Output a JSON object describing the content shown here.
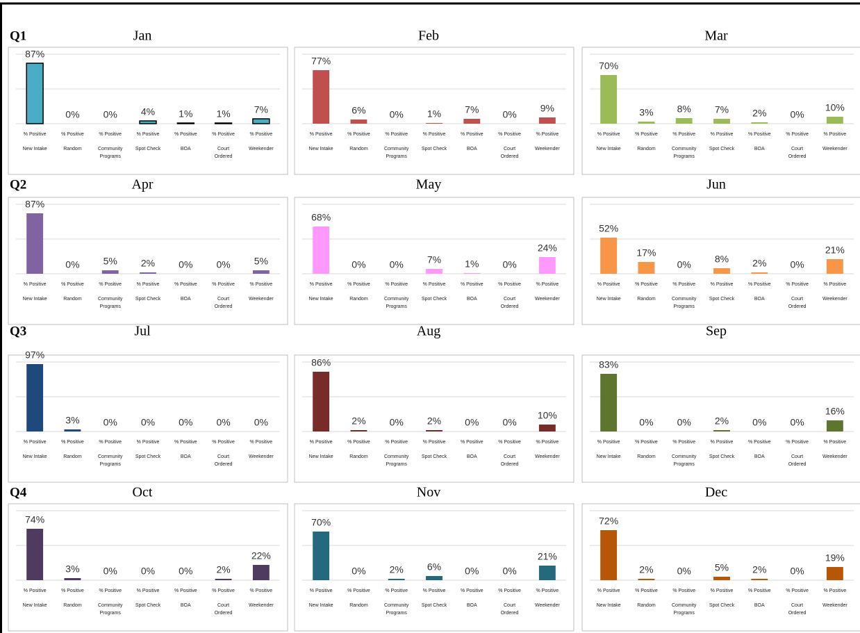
{
  "quarters": [
    "Q1",
    "Q2",
    "Q3",
    "Q4"
  ],
  "chart_data": [
    {
      "type": "bar",
      "title": "Jan",
      "color": "#4bacc6",
      "stroke": "#000000",
      "ylim": [
        0,
        100
      ],
      "yticks": [
        0,
        50,
        100
      ],
      "grid": true,
      "categories": [
        [
          "% Positive",
          "New Intake"
        ],
        [
          "% Positive",
          "Random"
        ],
        [
          "% Positive",
          "Community",
          "Programs"
        ],
        [
          "% Positive",
          "Spot Check"
        ],
        [
          "% Positive",
          "BOA"
        ],
        [
          "% Positive",
          "Court",
          "Ordered"
        ],
        [
          "% Positive",
          "Weekender"
        ]
      ],
      "values": [
        87,
        0,
        0,
        4,
        1,
        1,
        7
      ],
      "value_labels": [
        "87%",
        "0%",
        "0%",
        "4%",
        "1%",
        "1%",
        "7%"
      ]
    },
    {
      "type": "bar",
      "title": "Feb",
      "color": "#c0504d",
      "ylim": [
        0,
        100
      ],
      "yticks": [
        0,
        50,
        100
      ],
      "grid": true,
      "categories": [
        [
          "% Positive",
          "New Intake"
        ],
        [
          "% Positive",
          "Random"
        ],
        [
          "% Positive",
          "Community",
          "Programs"
        ],
        [
          "% Positive",
          "Spot Check"
        ],
        [
          "% Positive",
          "BOA"
        ],
        [
          "% Positive",
          "Court",
          "Ordered"
        ],
        [
          "% Positive",
          "Weekender"
        ]
      ],
      "values": [
        77,
        6,
        0,
        1,
        7,
        0,
        9
      ],
      "value_labels": [
        "77%",
        "6%",
        "0%",
        "1%",
        "7%",
        "0%",
        "9%"
      ]
    },
    {
      "type": "bar",
      "title": "Mar",
      "color": "#9bbb59",
      "ylim": [
        0,
        100
      ],
      "yticks": [
        0,
        50,
        100
      ],
      "grid": true,
      "categories": [
        [
          "% Positive",
          "New Intake"
        ],
        [
          "% Positive",
          "Random"
        ],
        [
          "% Positive",
          "Community",
          "Programs"
        ],
        [
          "% Positive",
          "Spot Check"
        ],
        [
          "% Positive",
          "BOA"
        ],
        [
          "% Positive",
          "Court",
          "Ordered"
        ],
        [
          "% Positive",
          "Weekender"
        ]
      ],
      "values": [
        70,
        3,
        8,
        7,
        2,
        0,
        10
      ],
      "value_labels": [
        "70%",
        "3%",
        "8%",
        "7%",
        "2%",
        "0%",
        "10%"
      ]
    },
    {
      "type": "bar",
      "title": "Apr",
      "color": "#8064a2",
      "ylim": [
        0,
        100
      ],
      "yticks": [
        0,
        50,
        100
      ],
      "grid": true,
      "categories": [
        [
          "% Positive",
          "New Intake"
        ],
        [
          "% Positive",
          "Random"
        ],
        [
          "% Positive",
          "Community",
          "Programs"
        ],
        [
          "% Positive",
          "Spot Check"
        ],
        [
          "% Positive",
          "BOA"
        ],
        [
          "% Positive",
          "Court",
          "Ordered"
        ],
        [
          "% Positive",
          "Weekender"
        ]
      ],
      "values": [
        87,
        0,
        5,
        2,
        0,
        0,
        5
      ],
      "value_labels": [
        "87%",
        "0%",
        "5%",
        "2%",
        "0%",
        "0%",
        "5%"
      ]
    },
    {
      "type": "bar",
      "title": "May",
      "color": "#ff99ff",
      "ylim": [
        0,
        100
      ],
      "yticks": [
        0,
        50,
        100
      ],
      "grid": true,
      "categories": [
        [
          "% Positive",
          "New Intake"
        ],
        [
          "% Positive",
          "Random"
        ],
        [
          "% Positive",
          "Community",
          "Programs"
        ],
        [
          "% Positive",
          "Spot Check"
        ],
        [
          "% Positive",
          "BOA"
        ],
        [
          "% Positive",
          "Court",
          "Ordered"
        ],
        [
          "% Positive",
          "Weekender"
        ]
      ],
      "values": [
        68,
        0,
        0,
        7,
        1,
        0,
        24
      ],
      "value_labels": [
        "68%",
        "0%",
        "0%",
        "7%",
        "1%",
        "0%",
        "24%"
      ]
    },
    {
      "type": "bar",
      "title": "Jun",
      "color": "#f79646",
      "ylim": [
        0,
        100
      ],
      "yticks": [
        0,
        50,
        100
      ],
      "grid": true,
      "categories": [
        [
          "% Positive",
          "New Intake"
        ],
        [
          "% Positive",
          "Random"
        ],
        [
          "% Positive",
          "Community",
          "Programs"
        ],
        [
          "% Positive",
          "Spot Check"
        ],
        [
          "% Positive",
          "BOA"
        ],
        [
          "% Positive",
          "Court",
          "Ordered"
        ],
        [
          "% Positive",
          "Weekender"
        ]
      ],
      "values": [
        52,
        17,
        0,
        8,
        2,
        0,
        21
      ],
      "value_labels": [
        "52%",
        "17%",
        "0%",
        "8%",
        "2%",
        "0%",
        "21%"
      ]
    },
    {
      "type": "bar",
      "title": "Jul",
      "color": "#1f497d",
      "ylim": [
        0,
        100
      ],
      "yticks": [
        0,
        50,
        100
      ],
      "grid": true,
      "categories": [
        [
          "% Positive",
          "New Intake"
        ],
        [
          "% Positive",
          "Random"
        ],
        [
          "% Positive",
          "Community",
          "Programs"
        ],
        [
          "% Positive",
          "Spot Check"
        ],
        [
          "% Positive",
          "BOA"
        ],
        [
          "% Positive",
          "Court",
          "Ordered"
        ],
        [
          "% Positive",
          "Weekender"
        ]
      ],
      "values": [
        97,
        3,
        0,
        0,
        0,
        0,
        0
      ],
      "value_labels": [
        "97%",
        "3%",
        "0%",
        "0%",
        "0%",
        "0%",
        "0%"
      ]
    },
    {
      "type": "bar",
      "title": "Aug",
      "color": "#772c2a",
      "ylim": [
        0,
        100
      ],
      "yticks": [
        0,
        50,
        100
      ],
      "grid": true,
      "categories": [
        [
          "% Positive",
          "New Intake"
        ],
        [
          "% Positive",
          "Random"
        ],
        [
          "% Positive",
          "Community",
          "Programs"
        ],
        [
          "% Positive",
          "Spot Check"
        ],
        [
          "% Positive",
          "BOA"
        ],
        [
          "% Positive",
          "Court",
          "Ordered"
        ],
        [
          "% Positive",
          "Weekender"
        ]
      ],
      "values": [
        86,
        2,
        0,
        2,
        0,
        0,
        10
      ],
      "value_labels": [
        "86%",
        "2%",
        "0%",
        "2%",
        "0%",
        "0%",
        "10%"
      ]
    },
    {
      "type": "bar",
      "title": "Sep",
      "color": "#5e7530",
      "ylim": [
        0,
        100
      ],
      "yticks": [
        0,
        50,
        100
      ],
      "grid": true,
      "categories": [
        [
          "% Positive",
          "New Intake"
        ],
        [
          "% Positive",
          "Random"
        ],
        [
          "% Positive",
          "Community",
          "Programs"
        ],
        [
          "% Positive",
          "Spot Check"
        ],
        [
          "% Positive",
          "BOA"
        ],
        [
          "% Positive",
          "Court",
          "Ordered"
        ],
        [
          "% Positive",
          "Weekender"
        ]
      ],
      "values": [
        83,
        0,
        0,
        2,
        0,
        0,
        16
      ],
      "value_labels": [
        "83%",
        "0%",
        "0%",
        "2%",
        "0%",
        "0%",
        "16%"
      ]
    },
    {
      "type": "bar",
      "title": "Oct",
      "color": "#4f3a60",
      "ylim": [
        0,
        100
      ],
      "yticks": [
        0,
        50,
        100
      ],
      "grid": true,
      "categories": [
        [
          "% Positive",
          "New Intake"
        ],
        [
          "% Positive",
          "Random"
        ],
        [
          "% Positive",
          "Community",
          "Programs"
        ],
        [
          "% Positive",
          "Spot Check"
        ],
        [
          "% Positive",
          "BOA"
        ],
        [
          "% Positive",
          "Court",
          "Ordered"
        ],
        [
          "% Positive",
          "Weekender"
        ]
      ],
      "values": [
        74,
        3,
        0,
        0,
        0,
        2,
        22
      ],
      "value_labels": [
        "74%",
        "3%",
        "0%",
        "0%",
        "0%",
        "2%",
        "22%"
      ]
    },
    {
      "type": "bar",
      "title": "Nov",
      "color": "#246a7c",
      "ylim": [
        0,
        100
      ],
      "yticks": [
        0,
        50,
        100
      ],
      "grid": true,
      "categories": [
        [
          "% Positive",
          "New Intake"
        ],
        [
          "% Positive",
          "Random"
        ],
        [
          "% Positive",
          "Community",
          "Programs"
        ],
        [
          "% Positive",
          "Spot Check"
        ],
        [
          "% Positive",
          "BOA"
        ],
        [
          "% Positive",
          "Court",
          "Ordered"
        ],
        [
          "% Positive",
          "Weekender"
        ]
      ],
      "values": [
        70,
        0,
        2,
        6,
        0,
        0,
        21
      ],
      "value_labels": [
        "70%",
        "0%",
        "2%",
        "6%",
        "0%",
        "0%",
        "21%"
      ]
    },
    {
      "type": "bar",
      "title": "Dec",
      "color": "#b65708",
      "ylim": [
        0,
        100
      ],
      "yticks": [
        0,
        50,
        100
      ],
      "grid": true,
      "categories": [
        [
          "% Positive",
          "New Intake"
        ],
        [
          "% Positive",
          "Random"
        ],
        [
          "% Positive",
          "Community",
          "Programs"
        ],
        [
          "% Positive",
          "Spot Check"
        ],
        [
          "% Positive",
          "BOA"
        ],
        [
          "% Positive",
          "Court",
          "Ordered"
        ],
        [
          "% Positive",
          "Weekender"
        ]
      ],
      "values": [
        72,
        2,
        0,
        5,
        2,
        0,
        19
      ],
      "value_labels": [
        "72%",
        "2%",
        "0%",
        "5%",
        "2%",
        "0%",
        "19%"
      ]
    }
  ]
}
